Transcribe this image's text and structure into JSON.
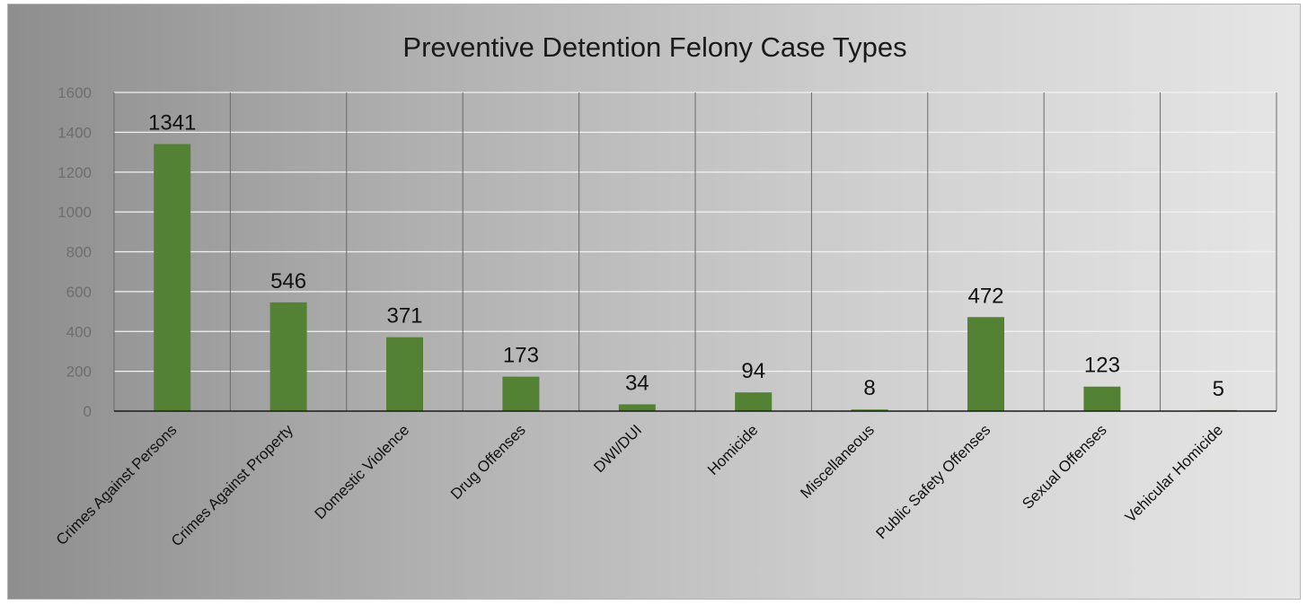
{
  "chart_data": {
    "type": "bar",
    "title": "Preventive Detention Felony Case Types",
    "xlabel": "",
    "ylabel": "",
    "categories": [
      "Crimes Against Persons",
      "Crimes Against Property",
      "Domestic Violence",
      "Drug Offenses",
      "DWI/DUI",
      "Homicide",
      "Miscellaneous",
      "Public Safety Offenses",
      "Sexual Offenses",
      "Vehicular Homicide"
    ],
    "values": [
      1341,
      546,
      371,
      173,
      34,
      94,
      8,
      472,
      123,
      5
    ],
    "data_labels": [
      "1341",
      "546",
      "371",
      "173",
      "34",
      "94",
      "8",
      "472",
      "123",
      "5"
    ],
    "ylim": [
      0,
      1600
    ],
    "yticks": [
      0,
      200,
      400,
      600,
      800,
      1000,
      1200,
      1400,
      1600
    ],
    "grid": true,
    "legend": "none",
    "colors": {
      "bar": "#548235",
      "grid": "#f2f2f2",
      "category_separator": "#6a6a6a",
      "axis": "#1a1a1a"
    }
  }
}
